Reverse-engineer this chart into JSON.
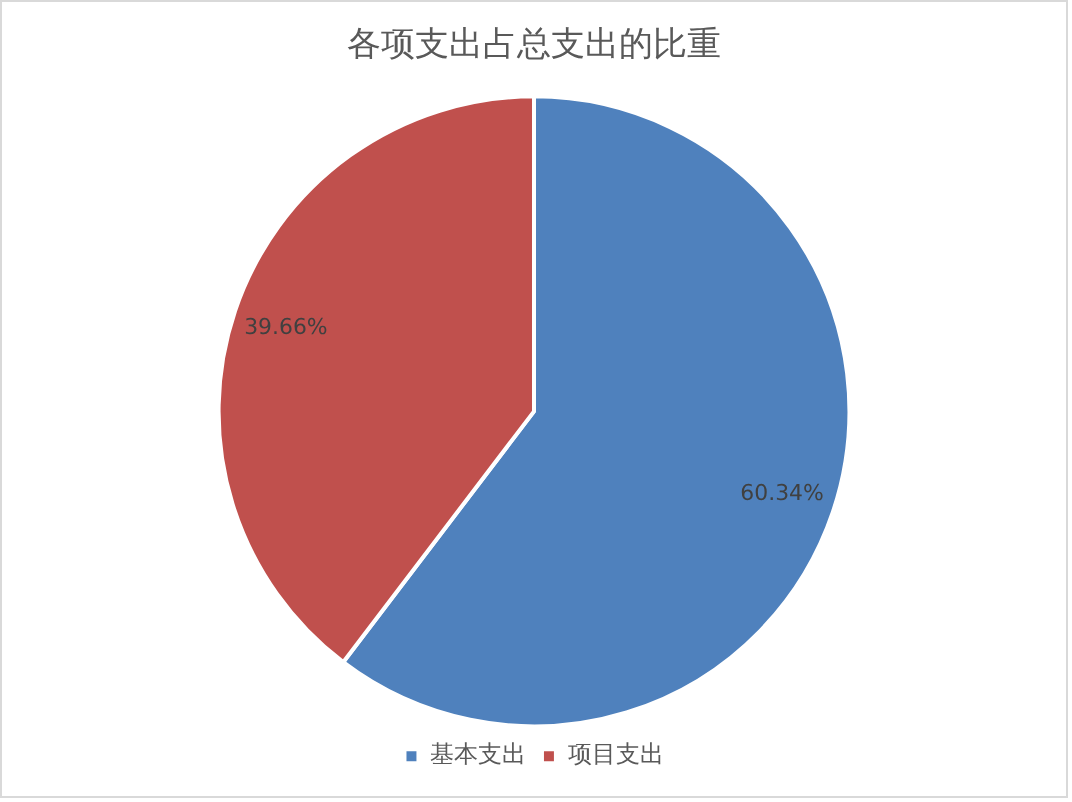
{
  "chart_data": {
    "type": "pie",
    "title": "各项支出占总支出的比重",
    "categories": [
      "基本支出",
      "项目支出"
    ],
    "values": [
      60.34,
      39.66
    ],
    "colors": [
      "#4f81bd",
      "#c0504d"
    ],
    "value_labels": [
      "60.34%",
      "39.66%"
    ],
    "legend": "bottom"
  }
}
